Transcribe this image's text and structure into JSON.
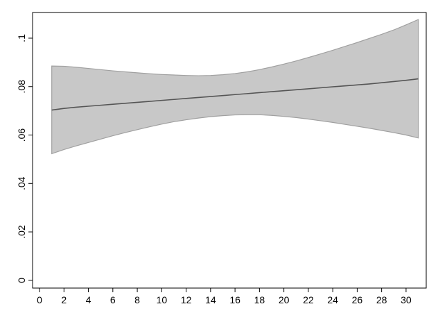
{
  "chart_data": {
    "type": "line",
    "x": [
      1,
      2,
      3,
      4,
      5,
      6,
      7,
      8,
      9,
      10,
      11,
      12,
      13,
      14,
      15,
      16,
      17,
      18,
      19,
      20,
      21,
      22,
      23,
      24,
      25,
      26,
      27,
      28,
      29,
      30,
      31
    ],
    "series": [
      {
        "color": "#555555",
        "values": [
          0.0703,
          0.071,
          0.0715,
          0.0719,
          0.0723,
          0.0727,
          0.0731,
          0.0735,
          0.0739,
          0.0743,
          0.0747,
          0.0751,
          0.0755,
          0.0759,
          0.0763,
          0.0767,
          0.0771,
          0.0775,
          0.0779,
          0.0783,
          0.0787,
          0.0791,
          0.0795,
          0.0799,
          0.0803,
          0.0807,
          0.0811,
          0.0816,
          0.0821,
          0.0826,
          0.0832
        ]
      }
    ],
    "band": {
      "color": "#c8c8c8",
      "edge_color": "#a0a0a0",
      "upper": [
        0.0885,
        0.0884,
        0.088,
        0.0875,
        0.087,
        0.0865,
        0.0861,
        0.0857,
        0.0853,
        0.085,
        0.0848,
        0.0846,
        0.0845,
        0.0846,
        0.0849,
        0.0854,
        0.0861,
        0.087,
        0.0881,
        0.0893,
        0.0906,
        0.092,
        0.0935,
        0.095,
        0.0966,
        0.0982,
        0.0999,
        0.1016,
        0.1034,
        0.1055,
        0.1077
      ],
      "lower": [
        0.0523,
        0.054,
        0.0555,
        0.0569,
        0.0583,
        0.0597,
        0.061,
        0.0622,
        0.0634,
        0.0645,
        0.0655,
        0.0663,
        0.067,
        0.0676,
        0.068,
        0.0683,
        0.0684,
        0.0684,
        0.0681,
        0.0677,
        0.0672,
        0.0666,
        0.0659,
        0.0652,
        0.0644,
        0.0636,
        0.0628,
        0.0619,
        0.061,
        0.06,
        0.0588
      ]
    },
    "xlim": [
      -0.57,
      31.65
    ],
    "xticks": [
      0,
      2,
      4,
      6,
      8,
      10,
      12,
      14,
      16,
      18,
      20,
      22,
      24,
      26,
      28,
      30
    ],
    "ylim": [
      -0.0032,
      0.1106
    ],
    "yticks": [
      0,
      {
        "value": 0.02,
        "label": ".02"
      },
      {
        "value": 0.04,
        "label": ".04"
      },
      {
        "value": 0.06,
        "label": ".06"
      },
      {
        "value": 0.08,
        "label": ".08"
      },
      {
        "value": 0.1,
        "label": ".1"
      }
    ],
    "grid": false
  }
}
